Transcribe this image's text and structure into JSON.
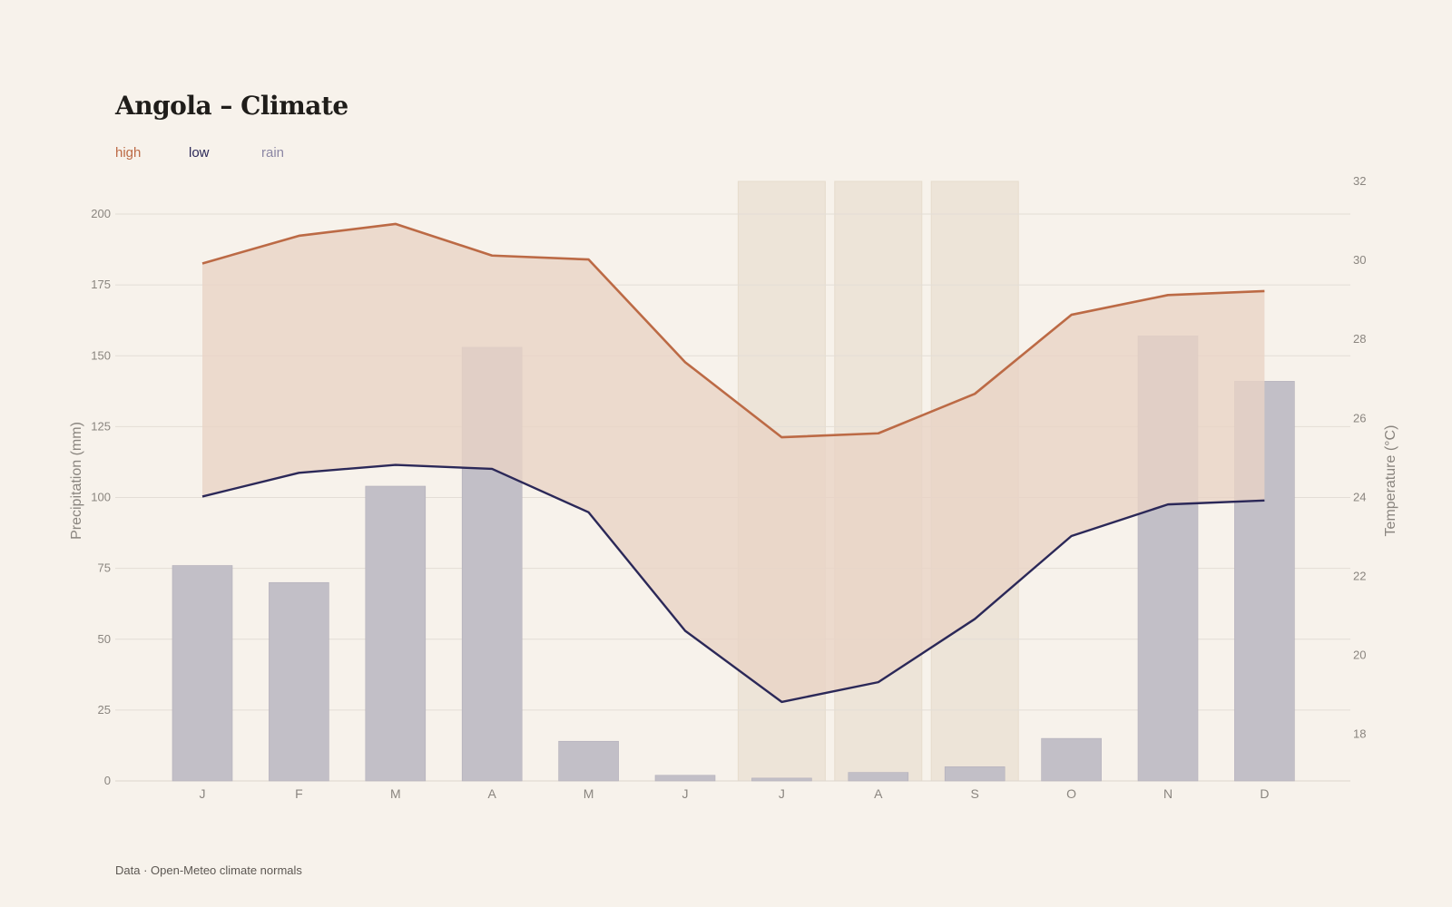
{
  "title": "Angola – Climate",
  "legend": [
    {
      "label": "high",
      "color": "#bc6a45"
    },
    {
      "label": "low",
      "color": "#2b2858"
    },
    {
      "label": "rain",
      "color": "#8c87a4"
    }
  ],
  "source": "Data · Open-Meteo climate normals",
  "chart_data": {
    "type": "bar+line",
    "categories": [
      "J",
      "F",
      "M",
      "A",
      "M",
      "J",
      "J",
      "A",
      "S",
      "O",
      "N",
      "D"
    ],
    "rain": {
      "name": "rain",
      "axis": "left",
      "values": [
        76,
        70,
        104,
        153,
        14,
        2,
        1,
        3,
        5,
        15,
        157,
        141
      ]
    },
    "high": {
      "name": "high",
      "axis": "right",
      "values": [
        29.9,
        30.6,
        30.9,
        30.1,
        30.0,
        27.4,
        25.5,
        25.6,
        26.6,
        28.6,
        29.1,
        29.2
      ]
    },
    "low": {
      "name": "low",
      "axis": "right",
      "values": [
        24.0,
        24.6,
        24.8,
        24.7,
        23.6,
        20.6,
        18.8,
        19.3,
        20.9,
        23.0,
        23.8,
        23.9
      ]
    },
    "left_axis": {
      "label": "Precipitation (mm)",
      "ticks": [
        0,
        25,
        50,
        75,
        100,
        125,
        150,
        175,
        200
      ],
      "range": [
        0,
        200
      ]
    },
    "right_axis": {
      "label": "Temperature (°C)",
      "ticks": [
        18,
        20,
        22,
        24,
        26,
        28,
        30,
        32
      ],
      "range": [
        16.8,
        32
      ]
    },
    "highlighted_months": [
      6,
      7,
      8
    ],
    "colors": {
      "high_line": "#bc6a45",
      "low_line": "#2b2858",
      "band_fill": "#e9d3c6",
      "bar_fill": "#c2bfc7",
      "highlight_fill": "#ede4d8",
      "grid": "#e3ddd6"
    },
    "grid": true
  }
}
